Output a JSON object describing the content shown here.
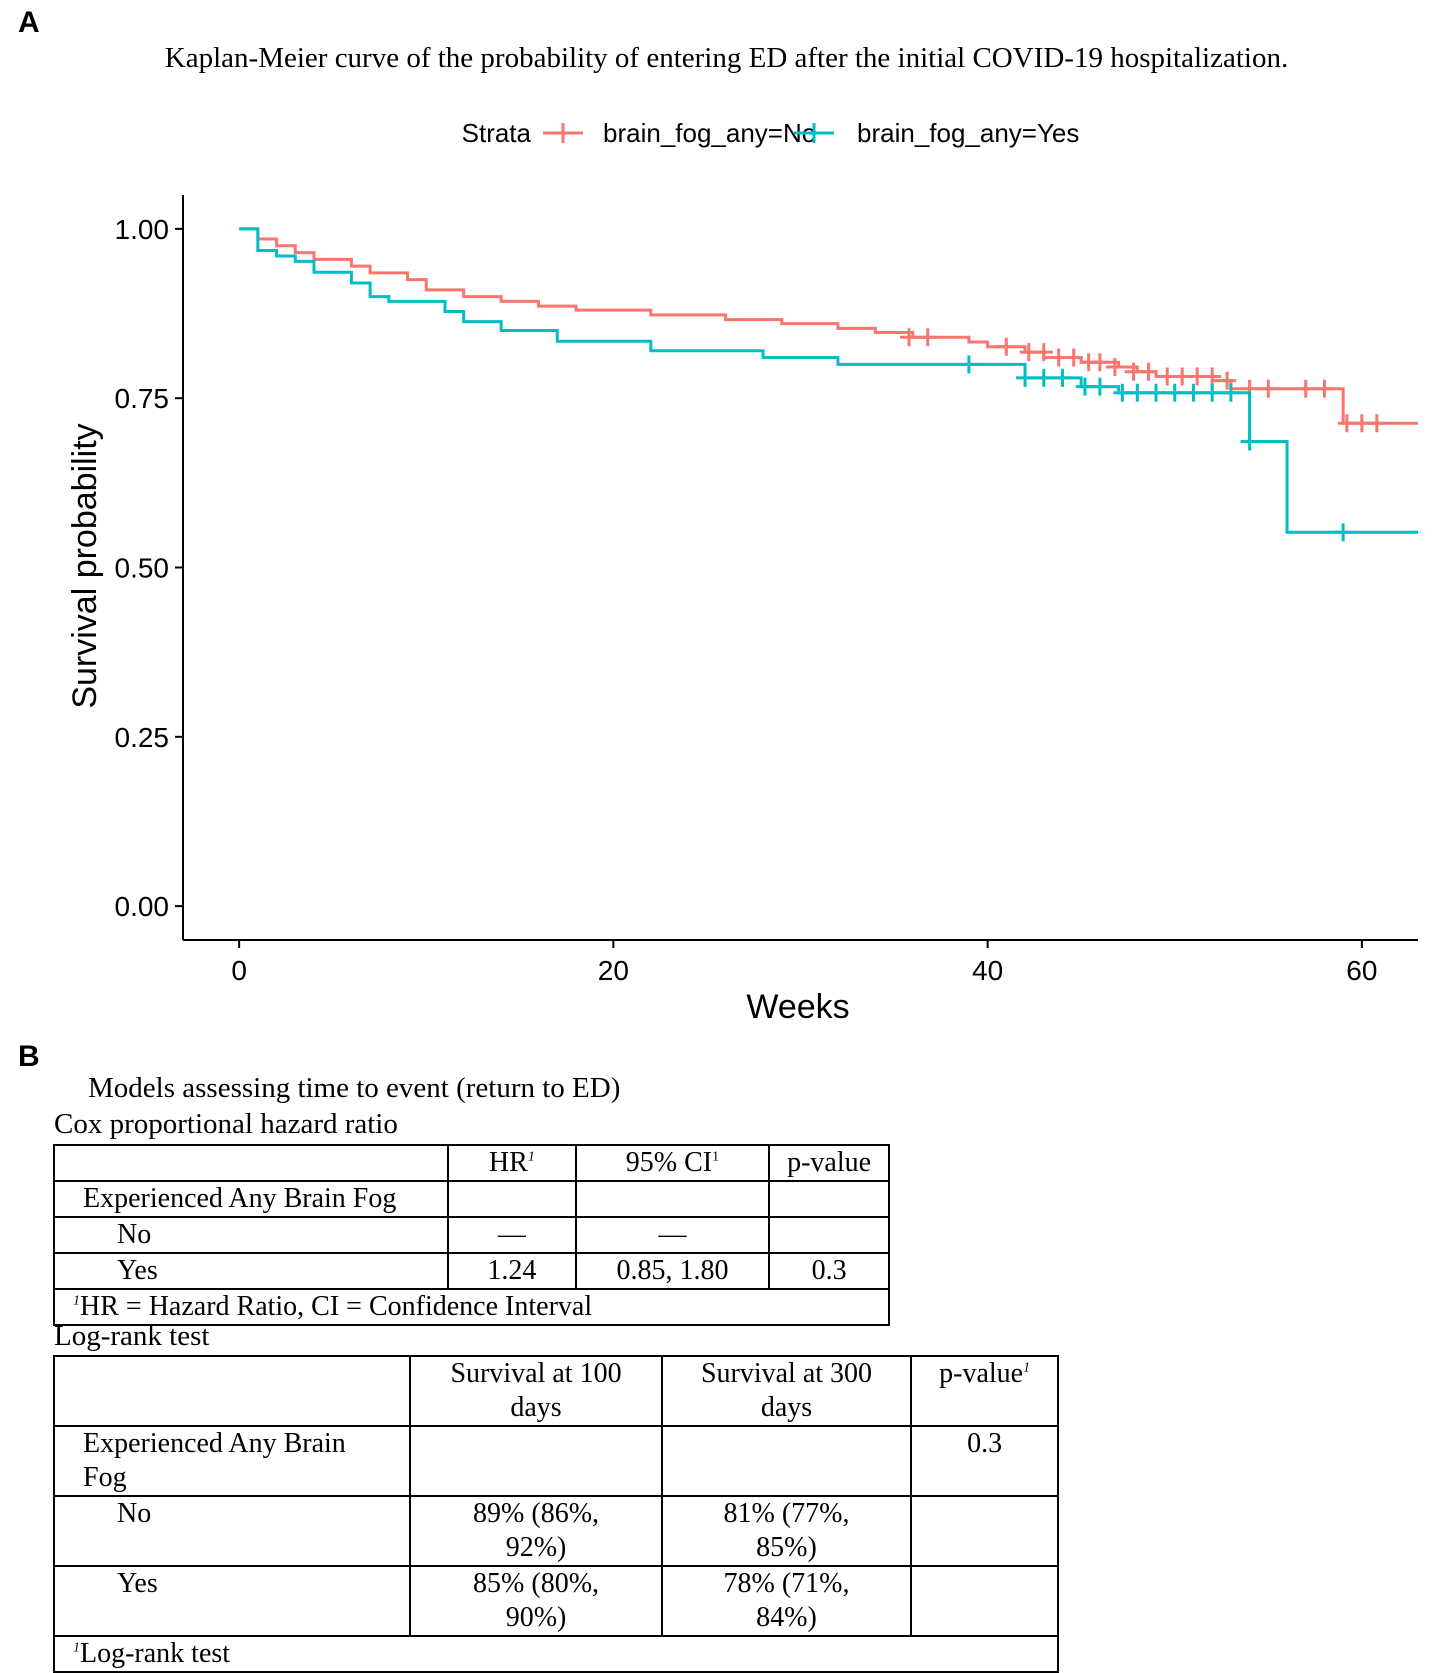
{
  "panel_a_label": "A",
  "panel_b_label": "B",
  "chart_data": {
    "type": "line",
    "subtype": "kaplan-meier step curve",
    "title": "Kaplan-Meier curve of the probability of entering ED after the initial COVID-19 hospitalization.",
    "xlabel": "Weeks",
    "ylabel": "Survival probability",
    "xlim": [
      -3,
      63
    ],
    "ylim": [
      -0.05,
      1.05
    ],
    "xticks": [
      0,
      20,
      40,
      60
    ],
    "xtick_labels": [
      "0",
      "20",
      "40",
      "60"
    ],
    "yticks": [
      0,
      0.25,
      0.5,
      0.75,
      1.0
    ],
    "ytick_labels": [
      "0.00",
      "0.25",
      "0.50",
      "0.75",
      "1.00"
    ],
    "grid": false,
    "legend": {
      "title": "Strata",
      "position": "top"
    },
    "series": [
      {
        "name": "brain_fog_any=No",
        "color": "#F8766D",
        "steps": [
          [
            0,
            1.0
          ],
          [
            1,
            0.985
          ],
          [
            2,
            0.975
          ],
          [
            3,
            0.965
          ],
          [
            4,
            0.955
          ],
          [
            6,
            0.945
          ],
          [
            7,
            0.935
          ],
          [
            9,
            0.925
          ],
          [
            10,
            0.91
          ],
          [
            12,
            0.9
          ],
          [
            14,
            0.893
          ],
          [
            16,
            0.886
          ],
          [
            18,
            0.88
          ],
          [
            22,
            0.873
          ],
          [
            26,
            0.866
          ],
          [
            29,
            0.86
          ],
          [
            32,
            0.853
          ],
          [
            34,
            0.847
          ],
          [
            36,
            0.84
          ],
          [
            39,
            0.833
          ],
          [
            40,
            0.826
          ],
          [
            42,
            0.818
          ],
          [
            43,
            0.81
          ],
          [
            45,
            0.803
          ],
          [
            47,
            0.796
          ],
          [
            48,
            0.789
          ],
          [
            49,
            0.782
          ],
          [
            52,
            0.776
          ],
          [
            53,
            0.764
          ],
          [
            59,
            0.713
          ]
        ],
        "end_x": 63,
        "censored": [
          [
            35.8,
            0.84
          ],
          [
            36.8,
            0.84
          ],
          [
            41.0,
            0.826
          ],
          [
            42.2,
            0.818
          ],
          [
            43.0,
            0.818
          ],
          [
            43.8,
            0.81
          ],
          [
            44.6,
            0.81
          ],
          [
            45.4,
            0.803
          ],
          [
            46.0,
            0.803
          ],
          [
            46.8,
            0.796
          ],
          [
            47.8,
            0.789
          ],
          [
            48.6,
            0.789
          ],
          [
            49.6,
            0.782
          ],
          [
            50.4,
            0.782
          ],
          [
            51.2,
            0.782
          ],
          [
            52.0,
            0.782
          ],
          [
            52.8,
            0.776
          ],
          [
            54.0,
            0.764
          ],
          [
            55.0,
            0.764
          ],
          [
            57.0,
            0.764
          ],
          [
            58.0,
            0.764
          ],
          [
            59.2,
            0.713
          ],
          [
            60.0,
            0.713
          ],
          [
            60.8,
            0.713
          ]
        ]
      },
      {
        "name": "brain_fog_any=Yes",
        "color": "#00BFC4",
        "steps": [
          [
            0,
            1.0
          ],
          [
            1,
            0.968
          ],
          [
            2,
            0.96
          ],
          [
            3,
            0.952
          ],
          [
            4,
            0.936
          ],
          [
            6,
            0.92
          ],
          [
            7,
            0.9
          ],
          [
            8,
            0.893
          ],
          [
            11,
            0.878
          ],
          [
            12,
            0.863
          ],
          [
            14,
            0.85
          ],
          [
            17,
            0.834
          ],
          [
            22,
            0.82
          ],
          [
            28,
            0.81
          ],
          [
            32,
            0.8
          ],
          [
            42,
            0.78
          ],
          [
            45,
            0.767
          ],
          [
            47,
            0.758
          ],
          [
            54,
            0.686
          ],
          [
            56,
            0.552
          ]
        ],
        "end_x": 63,
        "censored": [
          [
            39.0,
            0.8
          ],
          [
            42.0,
            0.78
          ],
          [
            43.0,
            0.78
          ],
          [
            44.0,
            0.78
          ],
          [
            45.2,
            0.767
          ],
          [
            46.0,
            0.767
          ],
          [
            47.2,
            0.758
          ],
          [
            48.0,
            0.758
          ],
          [
            49.0,
            0.758
          ],
          [
            50.0,
            0.758
          ],
          [
            51.0,
            0.758
          ],
          [
            52.0,
            0.758
          ],
          [
            53.0,
            0.758
          ],
          [
            54.0,
            0.686
          ],
          [
            59.0,
            0.552
          ]
        ]
      }
    ]
  },
  "panel_b": {
    "title": "Models assessing time to event (return to ED)",
    "cox": {
      "heading": "Cox proportional hazard ratio",
      "col_hr": "HR",
      "col_hr_sup": "1",
      "col_ci": "95% CI",
      "col_ci_sup": "1",
      "col_p": "p-value",
      "group_label": "Experienced Any Brain Fog",
      "row_no": {
        "label": "No",
        "hr": "—",
        "ci": "—",
        "p": ""
      },
      "row_yes": {
        "label": "Yes",
        "hr": "1.24",
        "ci": "0.85, 1.80",
        "p": "0.3"
      },
      "footnote_sup": "1",
      "footnote": "HR = Hazard Ratio, CI = Confidence Interval"
    },
    "logrank": {
      "heading": "Log-rank test",
      "col_100_line1": "Survival at 100",
      "col_100_line2": "days",
      "col_300_line1": "Survival at 300",
      "col_300_line2": "days",
      "col_p": "p-value",
      "col_p_sup": "1",
      "group_label_line1": "Experienced Any Brain",
      "group_label_line2": "Fog",
      "group_p": "0.3",
      "row_no": {
        "label": "No",
        "s100_line1": "89% (86%,",
        "s100_line2": "92%)",
        "s300_line1": "81% (77%,",
        "s300_line2": "85%)"
      },
      "row_yes": {
        "label": "Yes",
        "s100_line1": "85% (80%,",
        "s100_line2": "90%)",
        "s300_line1": "78% (71%,",
        "s300_line2": "84%)"
      },
      "footnote_sup": "1",
      "footnote": "Log-rank test"
    }
  }
}
